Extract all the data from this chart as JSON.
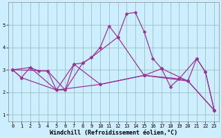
{
  "xlabel": "Windchill (Refroidissement éolien,°C)",
  "background_color": "#cceeff",
  "line_color": "#993399",
  "grid_color": "#aadddd",
  "series1": [
    [
      0,
      3.0
    ],
    [
      1,
      2.65
    ],
    [
      2,
      3.1
    ],
    [
      3,
      2.95
    ],
    [
      4,
      2.95
    ],
    [
      5,
      2.1
    ],
    [
      6,
      2.1
    ],
    [
      7,
      3.25
    ],
    [
      8,
      3.3
    ],
    [
      9,
      3.55
    ],
    [
      10,
      4.0
    ],
    [
      11,
      4.95
    ],
    [
      12,
      4.45
    ],
    [
      13,
      5.5
    ],
    [
      14,
      5.55
    ],
    [
      15,
      4.7
    ],
    [
      16,
      3.5
    ],
    [
      17,
      3.05
    ],
    [
      18,
      2.25
    ],
    [
      19,
      2.6
    ],
    [
      20,
      2.5
    ],
    [
      21,
      3.5
    ],
    [
      22,
      2.9
    ],
    [
      23,
      1.2
    ]
  ],
  "series2": [
    [
      0,
      3.0
    ],
    [
      1,
      2.65
    ],
    [
      5,
      2.1
    ],
    [
      10,
      2.35
    ],
    [
      15,
      2.75
    ],
    [
      20,
      2.5
    ],
    [
      23,
      1.2
    ]
  ],
  "series3": [
    [
      0,
      3.0
    ],
    [
      2,
      3.1
    ],
    [
      5,
      2.1
    ],
    [
      7,
      3.25
    ],
    [
      10,
      2.35
    ],
    [
      15,
      2.75
    ],
    [
      17,
      3.05
    ],
    [
      20,
      2.5
    ],
    [
      23,
      1.2
    ]
  ],
  "series4": [
    [
      0,
      3.0
    ],
    [
      4,
      2.95
    ],
    [
      6,
      2.1
    ],
    [
      8,
      3.3
    ],
    [
      9,
      3.55
    ],
    [
      12,
      4.45
    ],
    [
      15,
      2.75
    ],
    [
      19,
      2.6
    ],
    [
      21,
      3.5
    ],
    [
      22,
      2.9
    ],
    [
      23,
      1.2
    ]
  ],
  "xlim": [
    -0.5,
    23.5
  ],
  "ylim": [
    0.7,
    6.0
  ],
  "xticks": [
    0,
    1,
    2,
    3,
    4,
    5,
    6,
    7,
    8,
    9,
    10,
    11,
    12,
    13,
    14,
    15,
    16,
    17,
    18,
    19,
    20,
    21,
    22,
    23
  ],
  "yticks": [
    1,
    2,
    3,
    4,
    5
  ],
  "markersize": 2.5,
  "linewidth": 0.9,
  "tick_fontsize": 5.0,
  "label_fontsize": 6.0
}
